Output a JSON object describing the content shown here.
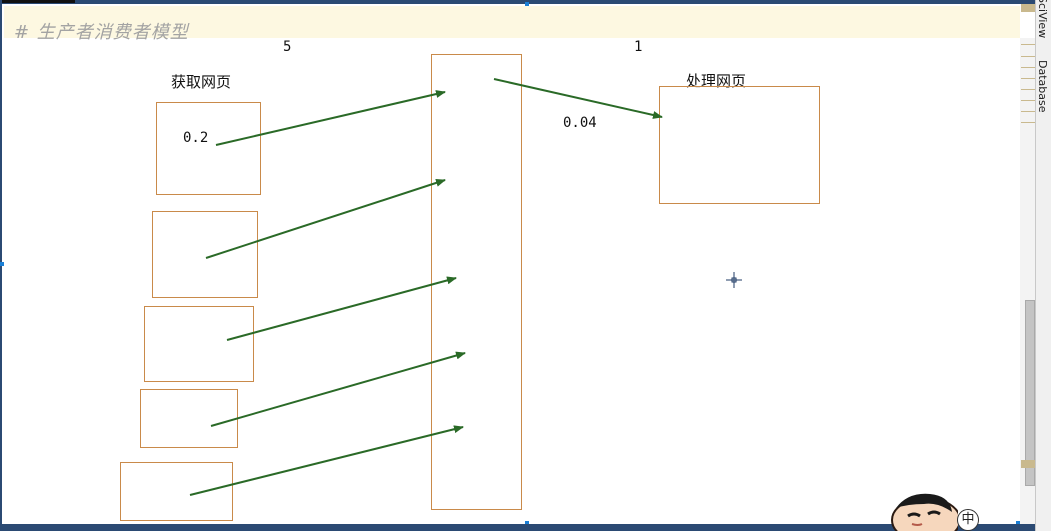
{
  "editor": {
    "comment": "# 生产者消费者模型"
  },
  "diagram": {
    "count_left": "5",
    "count_right": "1",
    "fetch_label": "获取网页",
    "process_label": "处理网页",
    "fetch_time": "0.2",
    "process_time": "0.04"
  },
  "right_panel": {
    "tab_sciview": "SciView",
    "tab_database": "Database"
  },
  "ime": {
    "mode": "中"
  },
  "colors": {
    "arrow": "#2a6a27",
    "box_border": "#c98a4a",
    "comment_bg": "#fdf8e1",
    "comment_text": "#a3a3a3"
  }
}
